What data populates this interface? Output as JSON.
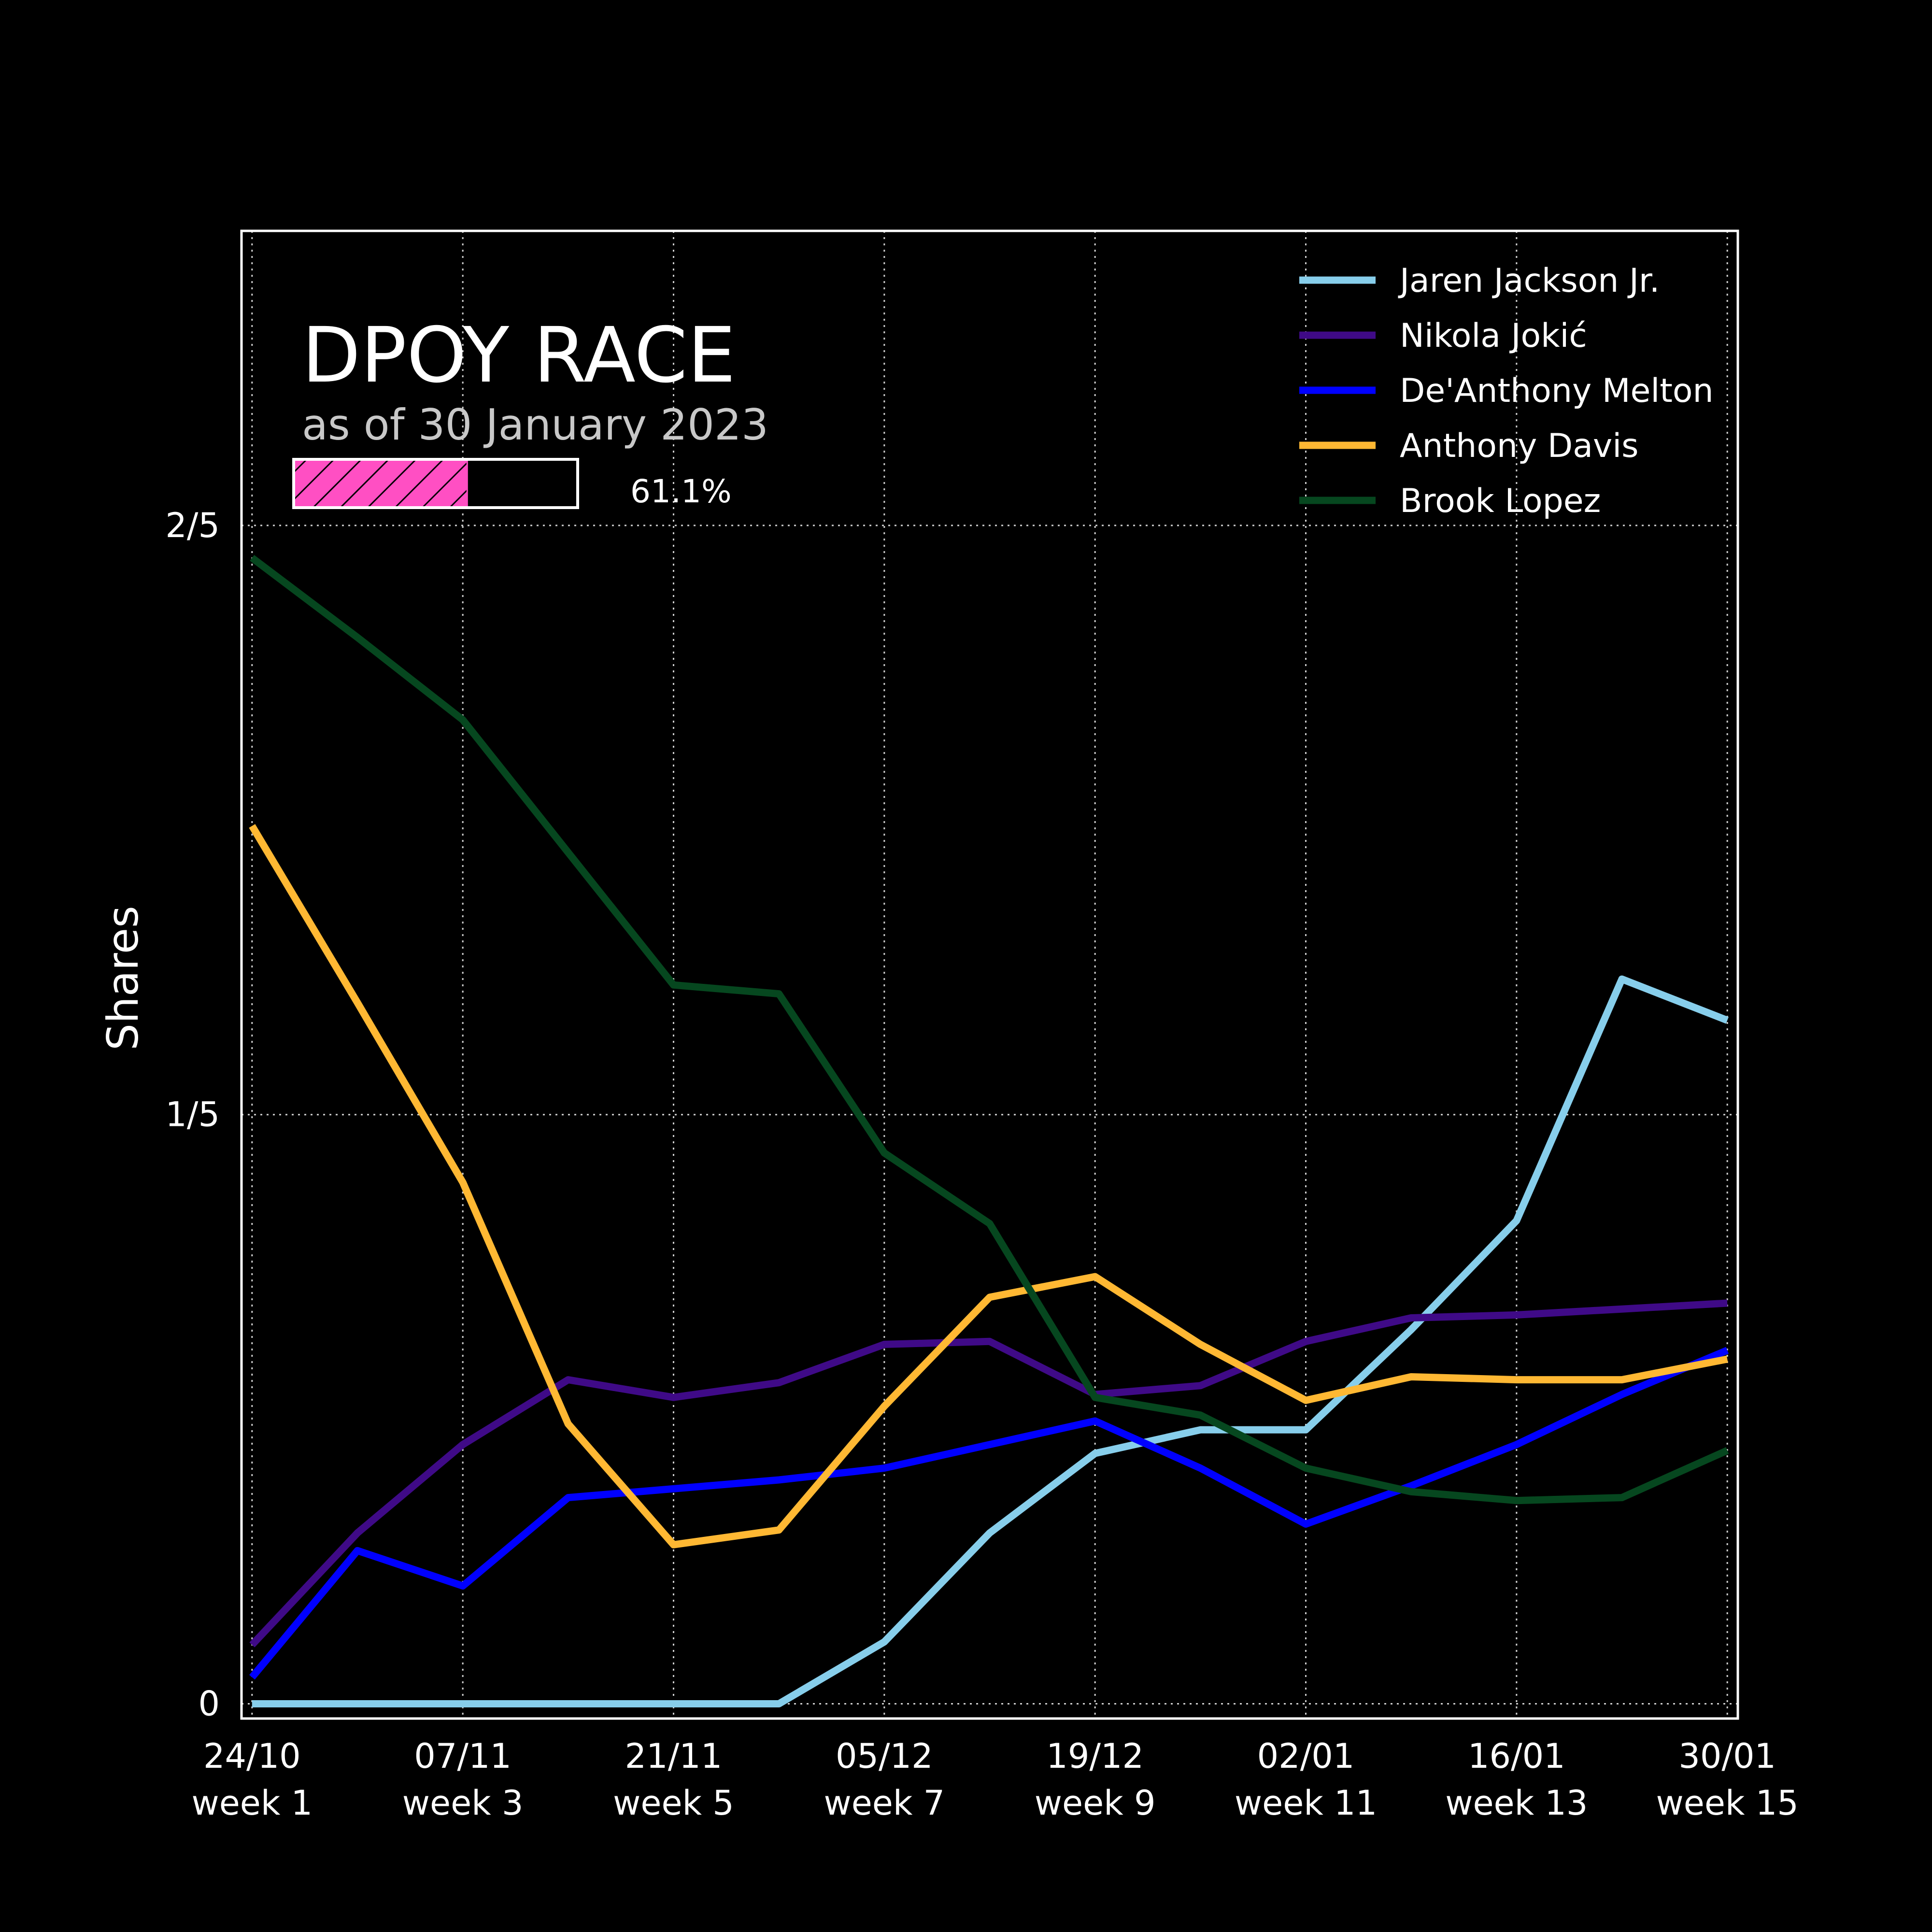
{
  "chart_data": {
    "type": "line",
    "title": "DPOY RACE",
    "subtitle": "as of 30 January 2023",
    "progress": {
      "value_percent": 61.1,
      "label": "61.1%",
      "fill_color": "#ff4fc3"
    },
    "ylabel": "Shares",
    "xlabel": "",
    "ylim": [
      -0.005,
      0.5
    ],
    "yticks": [
      {
        "value": 0,
        "label": "0"
      },
      {
        "value": 0.2,
        "label": "1/5"
      },
      {
        "value": 0.4,
        "label": "2/5"
      }
    ],
    "x": [
      1,
      2,
      3,
      4,
      5,
      6,
      7,
      8,
      9,
      10,
      11,
      12,
      13,
      14,
      15
    ],
    "xlim": [
      0.9,
      15.1
    ],
    "xticks": [
      {
        "value": 1,
        "date": "24/10",
        "week": "week 1"
      },
      {
        "value": 3,
        "date": "07/11",
        "week": "week 3"
      },
      {
        "value": 5,
        "date": "21/11",
        "week": "week 5"
      },
      {
        "value": 7,
        "date": "05/12",
        "week": "week 7"
      },
      {
        "value": 9,
        "date": "19/12",
        "week": "week 9"
      },
      {
        "value": 11,
        "date": "02/01",
        "week": "week 11"
      },
      {
        "value": 13,
        "date": "16/01",
        "week": "week 13"
      },
      {
        "value": 15,
        "date": "30/01",
        "week": "week 15"
      }
    ],
    "grid": true,
    "legend_position": "top-right",
    "series": [
      {
        "name": "Jaren Jackson Jr.",
        "color": "#87ceeb",
        "values": [
          0,
          0,
          0,
          0,
          0,
          0,
          0.021,
          0.058,
          0.085,
          0.093,
          0.093,
          0.127,
          0.164,
          0.246,
          0.232
        ]
      },
      {
        "name": "Nikola Jokić",
        "color": "#3f0a87",
        "values": [
          0.02,
          0.058,
          0.088,
          0.11,
          0.104,
          0.109,
          0.122,
          0.123,
          0.105,
          0.108,
          0.123,
          0.131,
          0.132,
          0.134,
          0.136
        ]
      },
      {
        "name": "De'Anthony Melton",
        "color": "#0000ff",
        "values": [
          0.009,
          0.052,
          0.04,
          0.07,
          0.073,
          0.076,
          0.08,
          0.088,
          0.096,
          0.08,
          0.061,
          0.074,
          0.088,
          0.105,
          0.12
        ]
      },
      {
        "name": "Anthony Davis",
        "color": "#ffb833",
        "values": [
          0.298,
          0.238,
          0.177,
          0.095,
          0.054,
          0.059,
          0.101,
          0.138,
          0.145,
          0.122,
          0.103,
          0.111,
          0.11,
          0.11,
          0.117
        ]
      },
      {
        "name": "Brook Lopez",
        "color": "#06471f",
        "values": [
          0.389,
          0.362,
          0.334,
          0.289,
          0.244,
          0.241,
          0.187,
          0.163,
          0.104,
          0.098,
          0.08,
          0.072,
          0.069,
          0.07,
          0.086
        ]
      }
    ]
  }
}
